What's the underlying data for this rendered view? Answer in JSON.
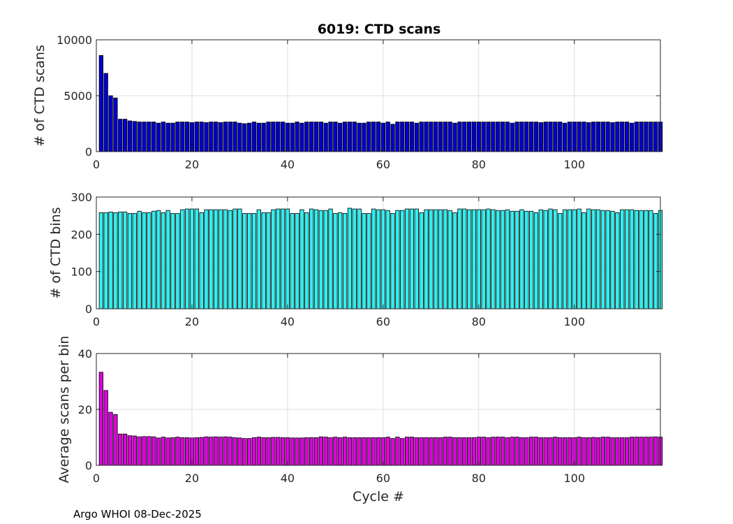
{
  "footer_text": "Argo WHOI 08-Dec-2025",
  "chart_data": [
    {
      "type": "bar",
      "title": "6019: CTD scans",
      "xlabel": "",
      "ylabel": "# of CTD scans",
      "xlim": [
        0,
        118
      ],
      "ylim": [
        0,
        10000
      ],
      "xticks": [
        0,
        20,
        40,
        60,
        80,
        100
      ],
      "yticks": [
        0,
        5000,
        10000
      ],
      "grid": true,
      "color": "#0000cc",
      "x": [
        1,
        2,
        3,
        4,
        5,
        6,
        7,
        8,
        9,
        10,
        11,
        12,
        13,
        14,
        15,
        16,
        17,
        18,
        19,
        20,
        21,
        22,
        23,
        24,
        25,
        26,
        27,
        28,
        29,
        30,
        31,
        32,
        33,
        34,
        35,
        36,
        37,
        38,
        39,
        40,
        41,
        42,
        43,
        44,
        45,
        46,
        47,
        48,
        49,
        50,
        51,
        52,
        53,
        54,
        55,
        56,
        57,
        58,
        59,
        60,
        61,
        62,
        63,
        64,
        65,
        66,
        67,
        68,
        69,
        70,
        71,
        72,
        73,
        74,
        75,
        76,
        77,
        78,
        79,
        80,
        81,
        82,
        83,
        84,
        85,
        86,
        87,
        88,
        89,
        90,
        91,
        92,
        93,
        94,
        95,
        96,
        97,
        98,
        99,
        100,
        101,
        102,
        103,
        104,
        105,
        106,
        107,
        108,
        109,
        110,
        111,
        112,
        113,
        114,
        115,
        116,
        117,
        118
      ],
      "values": [
        8600,
        7000,
        5000,
        4800,
        2900,
        2900,
        2750,
        2700,
        2650,
        2650,
        2650,
        2650,
        2550,
        2650,
        2550,
        2550,
        2650,
        2650,
        2650,
        2600,
        2650,
        2650,
        2600,
        2650,
        2650,
        2600,
        2650,
        2650,
        2650,
        2550,
        2500,
        2550,
        2650,
        2550,
        2550,
        2650,
        2650,
        2650,
        2650,
        2550,
        2550,
        2650,
        2550,
        2650,
        2650,
        2650,
        2650,
        2550,
        2650,
        2650,
        2550,
        2650,
        2650,
        2650,
        2550,
        2550,
        2650,
        2650,
        2650,
        2550,
        2650,
        2450,
        2650,
        2650,
        2650,
        2650,
        2550,
        2650,
        2650,
        2650,
        2650,
        2650,
        2650,
        2650,
        2550,
        2650,
        2650,
        2650,
        2650,
        2650,
        2650,
        2650,
        2650,
        2650,
        2650,
        2650,
        2550,
        2650,
        2650,
        2650,
        2650,
        2650,
        2600,
        2650,
        2650,
        2650,
        2650,
        2550,
        2650,
        2650,
        2650,
        2650,
        2600,
        2650,
        2650,
        2650,
        2650,
        2600,
        2650,
        2650,
        2650,
        2550,
        2650,
        2650,
        2650,
        2650,
        2650,
        2650
      ]
    },
    {
      "type": "bar",
      "title": "",
      "xlabel": "",
      "ylabel": "# of CTD bins",
      "xlim": [
        0,
        118
      ],
      "ylim": [
        0,
        300
      ],
      "xticks": [
        0,
        20,
        40,
        60,
        80,
        100
      ],
      "yticks": [
        0,
        100,
        200,
        300
      ],
      "grid": true,
      "color": "#33eeee",
      "x": [
        1,
        2,
        3,
        4,
        5,
        6,
        7,
        8,
        9,
        10,
        11,
        12,
        13,
        14,
        15,
        16,
        17,
        18,
        19,
        20,
        21,
        22,
        23,
        24,
        25,
        26,
        27,
        28,
        29,
        30,
        31,
        32,
        33,
        34,
        35,
        36,
        37,
        38,
        39,
        40,
        41,
        42,
        43,
        44,
        45,
        46,
        47,
        48,
        49,
        50,
        51,
        52,
        53,
        54,
        55,
        56,
        57,
        58,
        59,
        60,
        61,
        62,
        63,
        64,
        65,
        66,
        67,
        68,
        69,
        70,
        71,
        72,
        73,
        74,
        75,
        76,
        77,
        78,
        79,
        80,
        81,
        82,
        83,
        84,
        85,
        86,
        87,
        88,
        89,
        90,
        91,
        92,
        93,
        94,
        95,
        96,
        97,
        98,
        99,
        100,
        101,
        102,
        103,
        104,
        105,
        106,
        107,
        108,
        109,
        110,
        111,
        112,
        113,
        114,
        115,
        116,
        117,
        118
      ],
      "values": [
        258,
        258,
        260,
        258,
        260,
        260,
        256,
        256,
        262,
        258,
        258,
        262,
        264,
        258,
        264,
        256,
        256,
        266,
        268,
        268,
        268,
        258,
        266,
        266,
        266,
        266,
        266,
        264,
        268,
        268,
        256,
        256,
        256,
        266,
        258,
        258,
        266,
        268,
        268,
        268,
        256,
        256,
        266,
        258,
        268,
        266,
        264,
        264,
        268,
        256,
        258,
        256,
        270,
        268,
        268,
        256,
        256,
        268,
        266,
        266,
        264,
        256,
        264,
        264,
        268,
        268,
        268,
        258,
        266,
        266,
        266,
        266,
        266,
        264,
        258,
        268,
        268,
        266,
        266,
        266,
        266,
        268,
        266,
        264,
        264,
        266,
        262,
        262,
        266,
        262,
        262,
        258,
        266,
        264,
        268,
        266,
        256,
        266,
        266,
        266,
        268,
        258,
        268,
        266,
        266,
        264,
        264,
        262,
        258,
        266,
        266,
        266,
        264,
        264,
        264,
        264,
        256,
        264
      ]
    },
    {
      "type": "bar",
      "title": "",
      "xlabel": "Cycle #",
      "ylabel": "Average scans per bin",
      "xlim": [
        0,
        118
      ],
      "ylim": [
        0,
        40
      ],
      "xticks": [
        0,
        20,
        40,
        60,
        80,
        100
      ],
      "yticks": [
        0,
        20,
        40
      ],
      "grid": true,
      "color": "#dd00dd",
      "x": [
        1,
        2,
        3,
        4,
        5,
        6,
        7,
        8,
        9,
        10,
        11,
        12,
        13,
        14,
        15,
        16,
        17,
        18,
        19,
        20,
        21,
        22,
        23,
        24,
        25,
        26,
        27,
        28,
        29,
        30,
        31,
        32,
        33,
        34,
        35,
        36,
        37,
        38,
        39,
        40,
        41,
        42,
        43,
        44,
        45,
        46,
        47,
        48,
        49,
        50,
        51,
        52,
        53,
        54,
        55,
        56,
        57,
        58,
        59,
        60,
        61,
        62,
        63,
        64,
        65,
        66,
        67,
        68,
        69,
        70,
        71,
        72,
        73,
        74,
        75,
        76,
        77,
        78,
        79,
        80,
        81,
        82,
        83,
        84,
        85,
        86,
        87,
        88,
        89,
        90,
        91,
        92,
        93,
        94,
        95,
        96,
        97,
        98,
        99,
        100,
        101,
        102,
        103,
        104,
        105,
        106,
        107,
        108,
        109,
        110,
        111,
        112,
        113,
        114,
        115,
        116,
        117,
        118
      ],
      "values": [
        33.3,
        26.8,
        19,
        18.2,
        11.2,
        11.2,
        10.6,
        10.5,
        10.2,
        10.3,
        10.3,
        10.2,
        9.8,
        10.1,
        9.8,
        9.9,
        10.1,
        9.9,
        9.9,
        9.8,
        9.9,
        10,
        10.2,
        10.1,
        10.2,
        10.1,
        10.2,
        10.1,
        9.9,
        9.8,
        9.6,
        9.6,
        9.9,
        10.1,
        9.9,
        9.9,
        10,
        10,
        9.9,
        9.9,
        9.8,
        9.8,
        9.8,
        9.9,
        9.9,
        9.9,
        10.2,
        10.1,
        9.9,
        10.1,
        9.9,
        10.1,
        9.9,
        9.9,
        9.9,
        9.9,
        9.9,
        9.9,
        9.9,
        9.9,
        10.1,
        9.6,
        10.1,
        9.6,
        10.1,
        10.1,
        9.9,
        9.9,
        9.9,
        9.9,
        9.9,
        9.9,
        10.1,
        10.1,
        9.9,
        9.9,
        9.9,
        9.9,
        9.9,
        10.1,
        10.1,
        9.9,
        10.1,
        10.1,
        10.1,
        9.9,
        10.1,
        10.1,
        9.9,
        9.9,
        10.1,
        10.1,
        9.9,
        9.9,
        9.9,
        10.1,
        9.9,
        9.9,
        9.9,
        9.9,
        10.1,
        9.9,
        9.9,
        10,
        9.9,
        10.1,
        10.1,
        9.9,
        9.9,
        9.9,
        9.9,
        10.1,
        10.1,
        10.1,
        10.1,
        10.1,
        10.2,
        10.1
      ]
    }
  ]
}
